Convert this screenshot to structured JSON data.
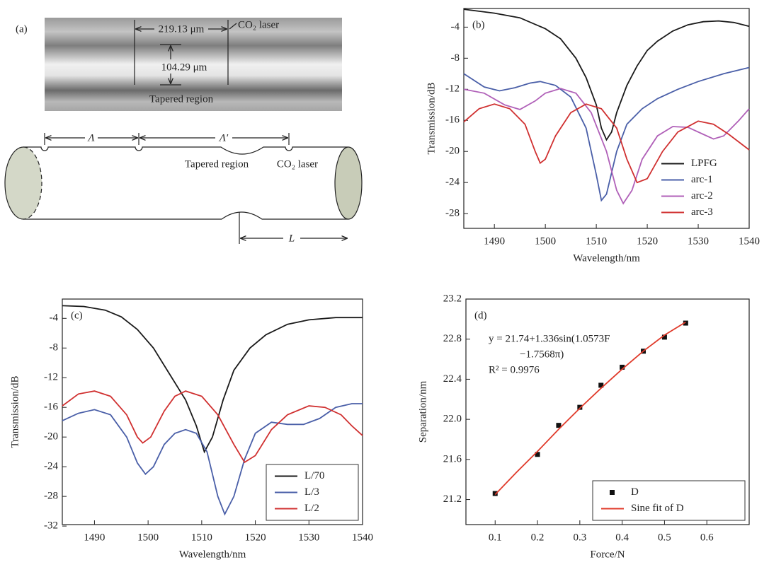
{
  "diagram": {
    "panel_label": "(a)",
    "photo_length": "219.13 μm",
    "photo_laser": "CO₂ laser",
    "photo_diameter": "104.29 μm",
    "photo_region": "Tapered region",
    "period_1": "Λ",
    "period_2": "Λ′",
    "schematic_region": "Tapered region",
    "schematic_laser": "CO₂ laser",
    "length": "L"
  },
  "chart_data": [
    {
      "type": "line",
      "panel_label": "(b)",
      "xlabel": "Wavelength/nm",
      "ylabel": "Transmission/dB",
      "xlim": [
        1484,
        1540
      ],
      "ylim": [
        -29.9,
        -1.6
      ],
      "xticks": [
        1490,
        1500,
        1510,
        1520,
        1530,
        1540
      ],
      "yticks": [
        -4,
        -8,
        -12,
        -16,
        -20,
        -24,
        -28
      ],
      "legend": "lower right",
      "legend_frame": false,
      "series": [
        {
          "name": "LPFG",
          "color": "#1a1a1a",
          "x": [
            1484,
            1490,
            1495,
            1500,
            1503,
            1506,
            1508,
            1510,
            1511,
            1512,
            1513,
            1514,
            1516,
            1518,
            1520,
            1522,
            1525,
            1528,
            1531,
            1534,
            1537,
            1540
          ],
          "values": [
            -1.7,
            -2.2,
            -2.8,
            -4.2,
            -5.5,
            -8,
            -10.5,
            -14,
            -17,
            -18.5,
            -17.5,
            -15,
            -11.5,
            -9,
            -7,
            -5.8,
            -4.5,
            -3.7,
            -3.3,
            -3.2,
            -3.4,
            -3.9
          ]
        },
        {
          "name": "arc-1",
          "color": "#4a5fa8",
          "x": [
            1484,
            1488,
            1491,
            1494,
            1497,
            1499,
            1502,
            1505,
            1508,
            1510,
            1511,
            1512,
            1514,
            1516,
            1519,
            1522,
            1526,
            1530,
            1535,
            1540
          ],
          "values": [
            -10,
            -11.7,
            -12.2,
            -11.8,
            -11.2,
            -11,
            -11.5,
            -13,
            -17,
            -23,
            -26.3,
            -25.5,
            -20,
            -16.5,
            -14.5,
            -13.2,
            -12,
            -11,
            -10,
            -9.2
          ]
        },
        {
          "name": "arc-2",
          "color": "#b060b8",
          "x": [
            1484,
            1488,
            1492,
            1495,
            1498,
            1500,
            1503,
            1506,
            1509,
            1512,
            1514,
            1515.3,
            1517,
            1519,
            1522,
            1525,
            1528,
            1531,
            1533,
            1535,
            1538,
            1540
          ],
          "values": [
            -12,
            -12.5,
            -14,
            -14.6,
            -13.5,
            -12.5,
            -11.9,
            -12.5,
            -15,
            -20,
            -25,
            -26.7,
            -25,
            -21,
            -18,
            -16.8,
            -16.9,
            -17.8,
            -18.4,
            -18,
            -16,
            -14.5
          ]
        },
        {
          "name": "arc-3",
          "color": "#d03030",
          "x": [
            1484,
            1487,
            1490,
            1493,
            1496,
            1498,
            1499,
            1500,
            1502,
            1505,
            1508,
            1511,
            1514,
            1516,
            1518,
            1520,
            1523,
            1526,
            1530,
            1533,
            1536,
            1540
          ],
          "values": [
            -16.2,
            -14.5,
            -13.9,
            -14.5,
            -16.5,
            -20,
            -21.5,
            -21,
            -18,
            -15,
            -13.9,
            -14.5,
            -17,
            -21,
            -24,
            -23.5,
            -20,
            -17.5,
            -16.1,
            -16.5,
            -17.8,
            -19.8
          ]
        }
      ]
    },
    {
      "type": "line",
      "panel_label": "(c)",
      "xlabel": "Wavelength/nm",
      "ylabel": "Transmission/dB",
      "xlim": [
        1484,
        1540
      ],
      "ylim": [
        -31.8,
        -1.4
      ],
      "xticks": [
        1490,
        1500,
        1510,
        1520,
        1530,
        1540
      ],
      "yticks": [
        -4,
        -8,
        -12,
        -16,
        -20,
        -24,
        -28,
        -32
      ],
      "legend": "lower right",
      "legend_frame": true,
      "series": [
        {
          "name": "L/70",
          "color": "#1a1a1a",
          "x": [
            1484,
            1488,
            1492,
            1495,
            1498,
            1501,
            1504,
            1507,
            1509,
            1510.5,
            1512,
            1514,
            1516,
            1519,
            1522,
            1526,
            1530,
            1535,
            1540
          ],
          "values": [
            -2.3,
            -2.4,
            -2.9,
            -3.8,
            -5.5,
            -8,
            -11.5,
            -15,
            -18.5,
            -22,
            -20,
            -15,
            -11,
            -8,
            -6.2,
            -4.8,
            -4.2,
            -3.9,
            -3.9
          ]
        },
        {
          "name": "L/3",
          "color": "#4a5fa8",
          "x": [
            1484,
            1487,
            1490,
            1493,
            1496,
            1498,
            1499.5,
            1501,
            1503,
            1505,
            1507,
            1509,
            1511,
            1513,
            1514.3,
            1516,
            1518,
            1520,
            1523,
            1526,
            1529,
            1532,
            1535,
            1538,
            1540
          ],
          "values": [
            -17.8,
            -16.8,
            -16.3,
            -17,
            -20,
            -23.5,
            -25,
            -24,
            -21,
            -19.5,
            -19,
            -19.5,
            -22,
            -28,
            -30.4,
            -28,
            -23,
            -19.5,
            -18,
            -18.3,
            -18.3,
            -17.5,
            -16,
            -15.5,
            -15.5
          ]
        },
        {
          "name": "L/2",
          "color": "#d03030",
          "x": [
            1484,
            1487,
            1490,
            1493,
            1496,
            1498,
            1499,
            1500.5,
            1503,
            1505,
            1507,
            1510,
            1513,
            1516,
            1518,
            1520,
            1523,
            1526,
            1530,
            1533,
            1536,
            1538,
            1540
          ],
          "values": [
            -15.8,
            -14.2,
            -13.8,
            -14.5,
            -17,
            -20,
            -20.8,
            -20,
            -16.5,
            -14.5,
            -13.8,
            -14.5,
            -17,
            -21,
            -23.4,
            -22.5,
            -19,
            -17,
            -15.8,
            -16,
            -17,
            -18.5,
            -19.8
          ]
        }
      ]
    },
    {
      "type": "scatter",
      "panel_label": "(d)",
      "xlabel": "Force/N",
      "ylabel": "Separation/nm",
      "xlim": [
        0.031,
        0.7
      ],
      "ylim": [
        20.95,
        23.2
      ],
      "xticks": [
        0.1,
        0.2,
        0.3,
        0.4,
        0.5,
        0.6
      ],
      "yticks": [
        23.2,
        22.8,
        22.4,
        {
          "value": 22,
          "label": "22.0"
        },
        21.6,
        21.2
      ],
      "annotations": [
        "y = 21.74+1.336sin(1.0573F",
        "−1.7568π)",
        "R² = 0.9976"
      ],
      "legend": "lower right",
      "legend_frame": true,
      "series": [
        {
          "name": "D",
          "color": "#111111",
          "x": [
            0.1,
            0.2,
            0.25,
            0.3,
            0.35,
            0.4,
            0.45,
            0.5,
            0.55
          ],
          "values": [
            21.26,
            21.65,
            21.94,
            22.12,
            22.34,
            22.52,
            22.68,
            22.82,
            22.96
          ]
        },
        {
          "name": "Sine fit of D",
          "color": "#e03a2a",
          "line": true,
          "x": [
            0.1,
            0.15,
            0.2,
            0.25,
            0.3,
            0.35,
            0.4,
            0.45,
            0.5,
            0.55
          ],
          "values": [
            21.25,
            21.47,
            21.68,
            21.9,
            22.11,
            22.31,
            22.5,
            22.68,
            22.84,
            22.97
          ]
        }
      ]
    }
  ]
}
